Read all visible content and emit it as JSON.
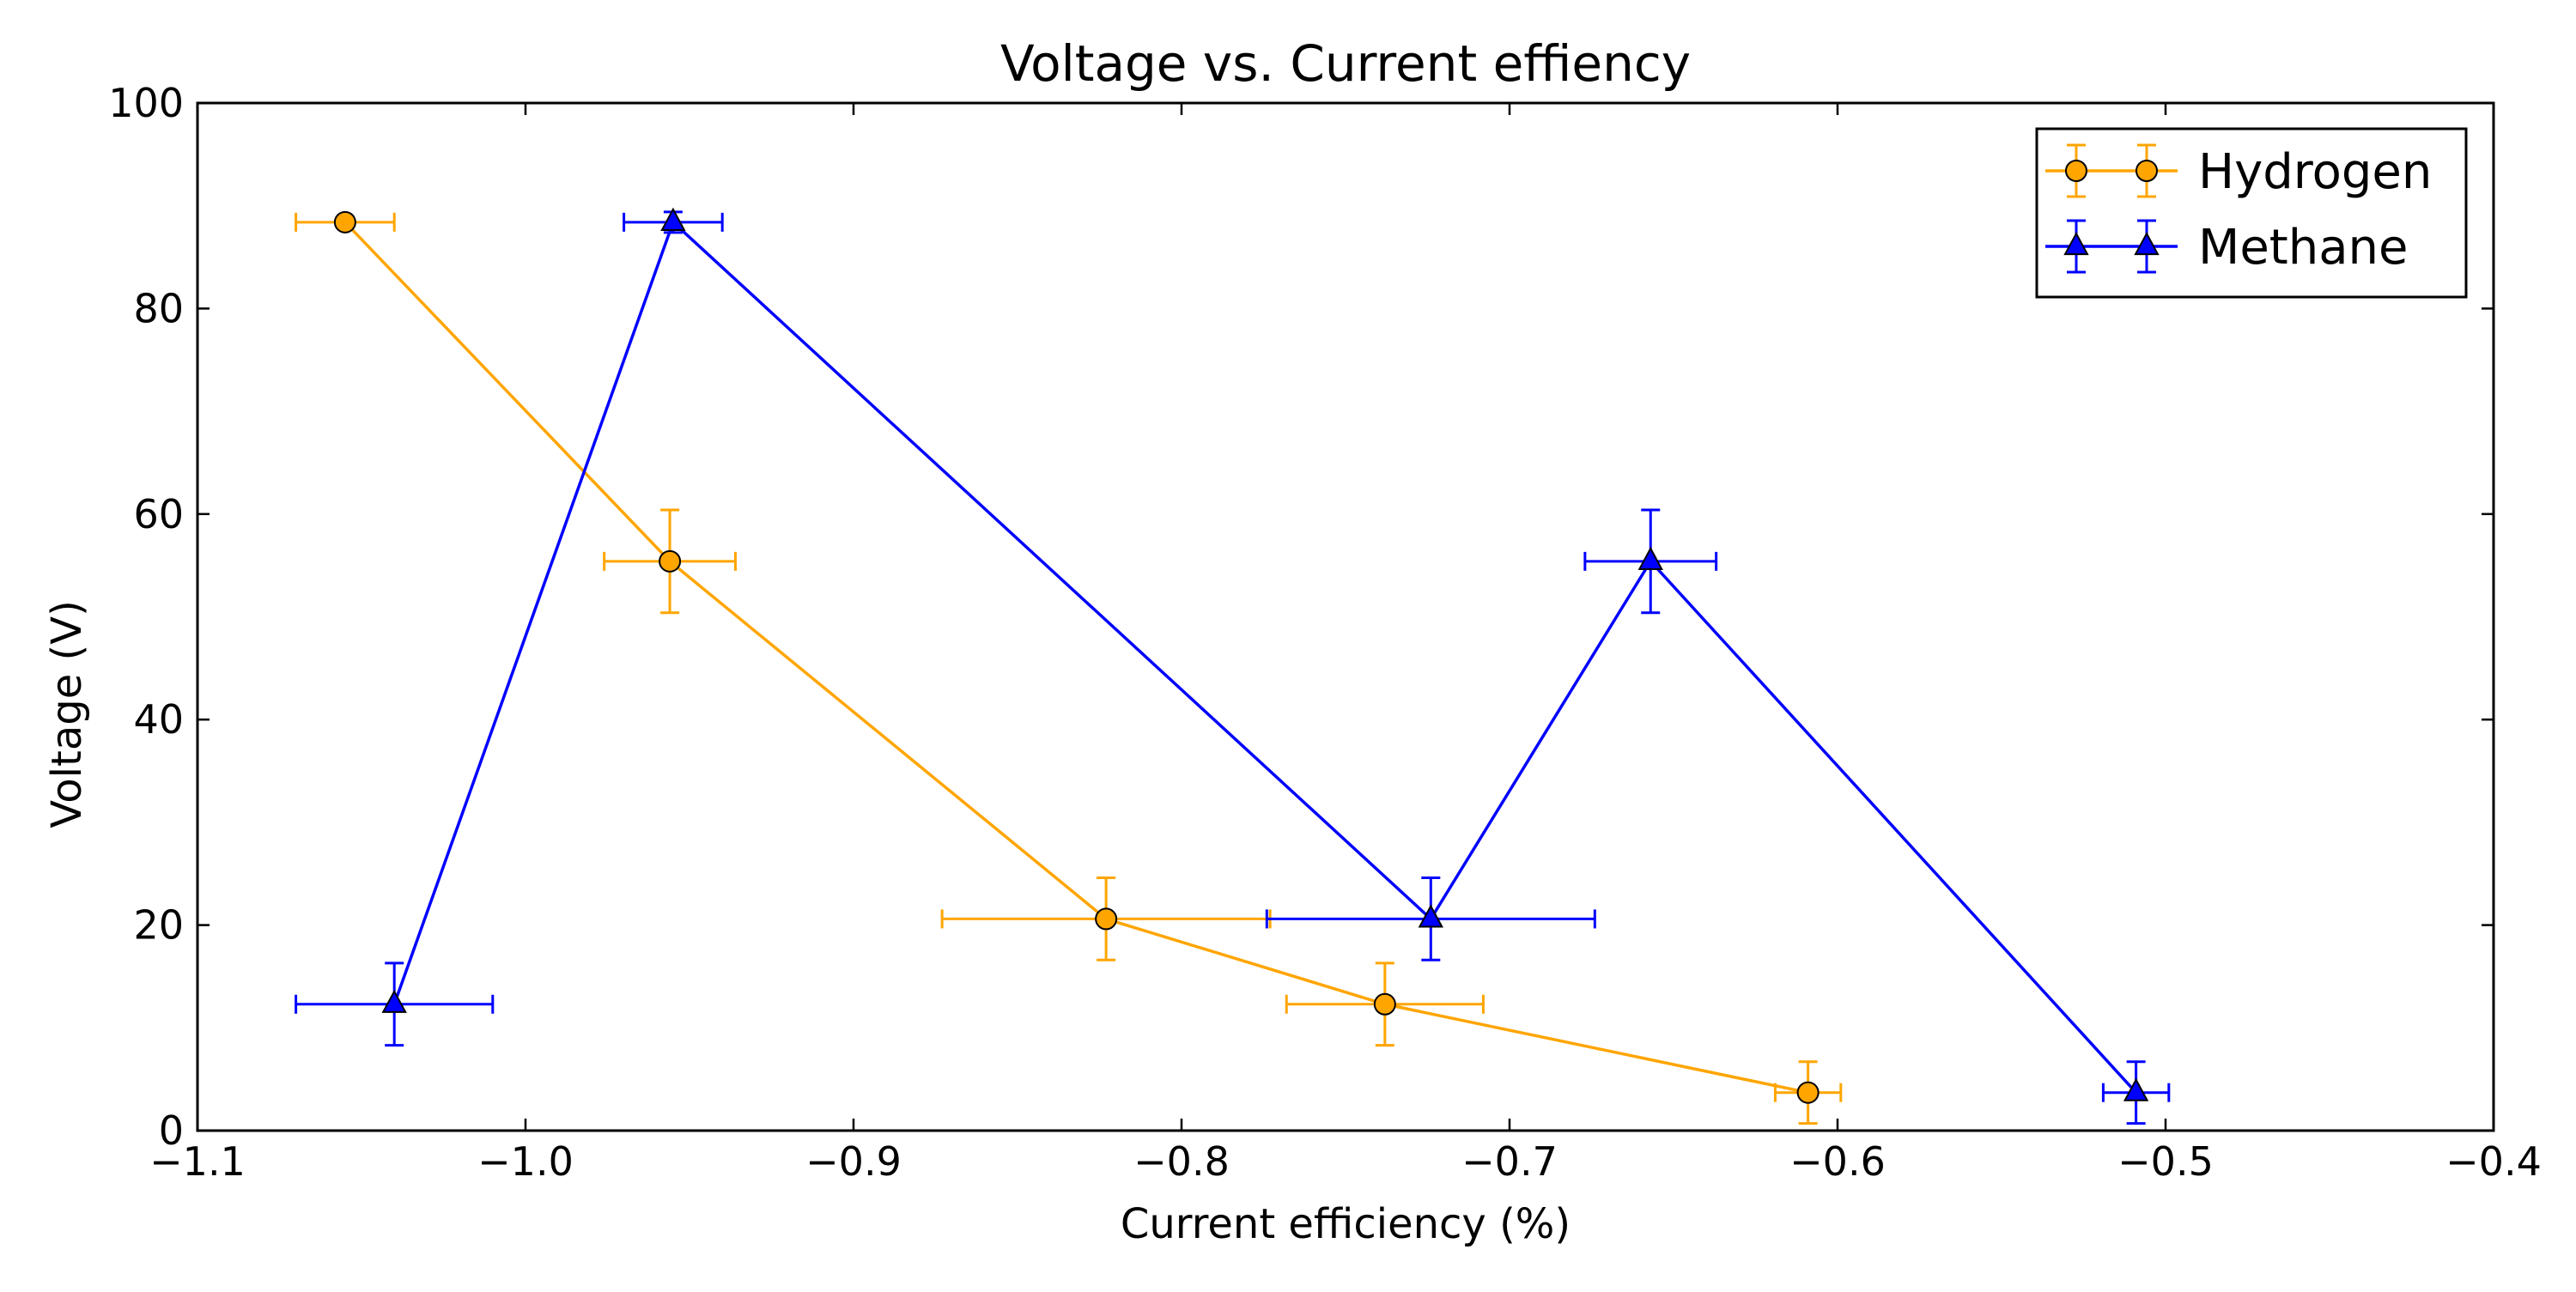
{
  "chart_data": {
    "type": "scatter",
    "title": "Voltage vs. Current effiency",
    "xlabel": "Current efficiency (%)",
    "ylabel": "Voltage (V)",
    "xlim": [
      -1.1,
      -0.4
    ],
    "ylim": [
      0,
      100
    ],
    "x_ticks": [
      -1.1,
      -1.0,
      -0.9,
      -0.8,
      -0.7,
      -0.6,
      -0.5,
      -0.4
    ],
    "x_tick_labels": [
      "−1.1",
      "−1.0",
      "−0.9",
      "−0.8",
      "−0.7",
      "−0.6",
      "−0.5",
      "−0.4"
    ],
    "y_ticks": [
      0,
      20,
      40,
      60,
      80,
      100
    ],
    "y_tick_labels": [
      "0",
      "20",
      "40",
      "60",
      "80",
      "100"
    ],
    "grid": false,
    "legend_position": "top-right",
    "series": [
      {
        "name": "Hydrogen",
        "color": "#FFA500",
        "marker": "circle",
        "x": [
          -1.055,
          -0.956,
          -0.823,
          -0.738,
          -0.609
        ],
        "y": [
          88.4,
          55.4,
          20.6,
          12.3,
          3.7
        ],
        "xerr": [
          0.015,
          0.02,
          0.05,
          0.03,
          0.01
        ],
        "yerr": [
          0,
          5,
          4,
          4,
          3
        ]
      },
      {
        "name": "Methane",
        "color": "#0000FF",
        "marker": "triangle",
        "x": [
          -1.04,
          -0.955,
          -0.724,
          -0.657,
          -0.509
        ],
        "y": [
          12.3,
          88.4,
          20.6,
          55.4,
          3.7
        ],
        "xerr": [
          0.03,
          0.015,
          0.05,
          0.02,
          0.01
        ],
        "yerr": [
          4,
          1,
          4,
          5,
          3
        ]
      }
    ]
  }
}
